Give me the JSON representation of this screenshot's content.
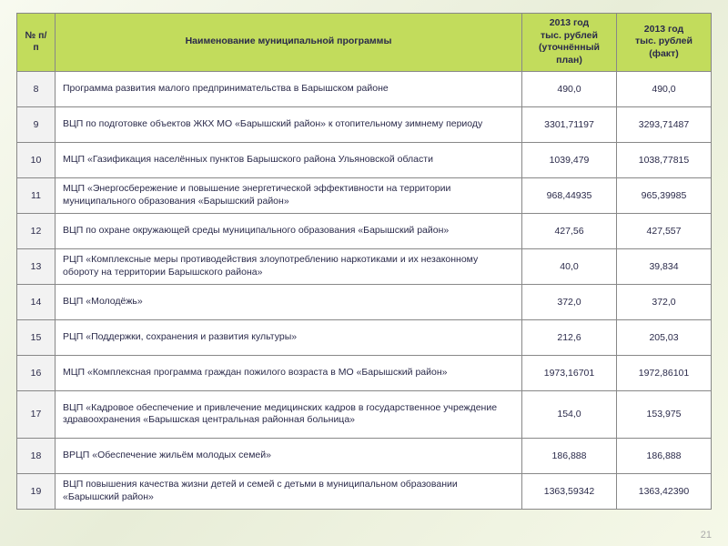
{
  "pageNumber": "21",
  "styles": {
    "header_bg": "#c2dc5c",
    "header_text": "#2a2a4a",
    "num_bg": "#f2f2f2",
    "border": "#888888",
    "col_widths": {
      "num": 42,
      "val": 104
    },
    "font_family": "Arial",
    "base_fontsize": 10.5
  },
  "headers": {
    "col1": "№ п/п",
    "col2": "Наименование муниципальной программы",
    "col3_l1": "2013 год",
    "col3_l2": "тыс. рублей",
    "col3_l3": "(уточнённый план)",
    "col4_l1": "2013 год",
    "col4_l2": "тыс. рублей",
    "col4_l3": "(факт)"
  },
  "rows": [
    {
      "n": "8",
      "name": "Программа развития малого предпринимательства в Барышском районе",
      "plan": "490,0",
      "fact": "490,0"
    },
    {
      "n": "9",
      "name": "ВЦП по подготовке объектов ЖКХ МО «Барышский район» к отопительному зимнему периоду",
      "plan": "3301,71197",
      "fact": "3293,71487"
    },
    {
      "n": "10",
      "name": "МЦП «Газификация населённых пунктов Барышского района Ульяновской области",
      "plan": "1039,479",
      "fact": "1038,77815"
    },
    {
      "n": "11",
      "name": "МЦП «Энергосбережение и повышение энергетической эффективности на территории муниципального образования «Барышский район»",
      "plan": "968,44935",
      "fact": "965,39985"
    },
    {
      "n": "12",
      "name": "ВЦП по охране окружающей среды муниципального образования «Барышский район»",
      "plan": "427,56",
      "fact": "427,557"
    },
    {
      "n": "13",
      "name": "РЦП «Комплексные меры противодействия злоупотреблению наркотиками и их незаконному обороту на территории Барышского района»",
      "plan": "40,0",
      "fact": "39,834"
    },
    {
      "n": "14",
      "name": "ВЦП «Молодёжь»",
      "plan": "372,0",
      "fact": "372,0"
    },
    {
      "n": "15",
      "name": "РЦП «Поддержки, сохранения и развития культуры»",
      "plan": "212,6",
      "fact": "205,03"
    },
    {
      "n": "16",
      "name": "МЦП «Комплексная программа граждан пожилого возраста в МО «Барышский район»",
      "plan": "1973,16701",
      "fact": "1972,86101"
    },
    {
      "n": "17",
      "name": "ВЦП «Кадровое обеспечение и привлечение медицинских кадров в государственное учреждение здравоохранения «Барышская центральная районная больница»",
      "plan": "154,0",
      "fact": "153,975"
    },
    {
      "n": "18",
      "name": "ВРЦП «Обеспечение жильём молодых семей»",
      "plan": "186,888",
      "fact": "186,888"
    },
    {
      "n": "19",
      "name": "ВЦП повышения качества жизни детей и семей с детьми в муниципальном образовании «Барышский район»",
      "plan": "1363,59342",
      "fact": "1363,42390"
    }
  ]
}
